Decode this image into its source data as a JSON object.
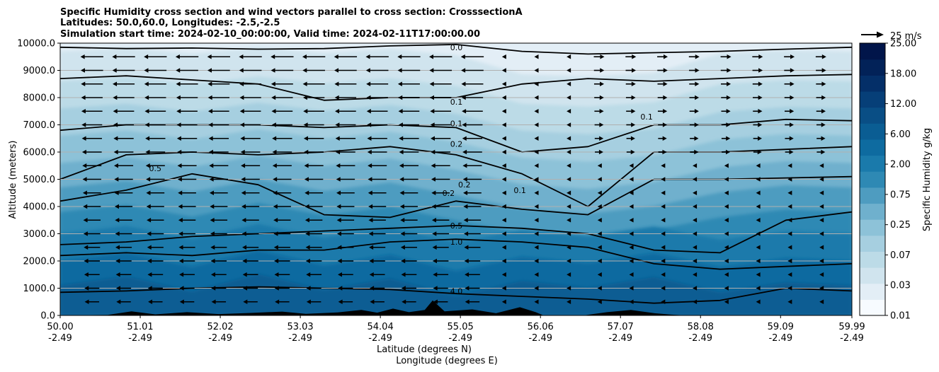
{
  "title_lines": [
    "Specific Humidity cross section and wind vectors parallel to cross section: CrosssectionA",
    "Latitudes: 50.0,60.0, Longitudes: -2.5,-2.5",
    "Simulation start time: 2024-02-10_00:00:00, Valid time: 2024-02-11T17:00:00.00"
  ],
  "quiver_key_label": "25 m/s",
  "colors": {
    "terrain": "#000000",
    "grid": "#b0b0b0",
    "contour": "#000000"
  },
  "chart_data": {
    "type": "heatmap",
    "ylabel": "Altitude (meters)",
    "xlabel_lines": [
      "Latitude (degrees N)",
      "Longitude (degrees E)"
    ],
    "ylim": [
      0,
      10000
    ],
    "xlim": [
      50.0,
      59.99
    ],
    "grid": "horizontal",
    "yticks": [
      0,
      1000,
      2000,
      3000,
      4000,
      5000,
      6000,
      7000,
      8000,
      9000,
      10000
    ],
    "ytick_labels": [
      "0.0",
      "1000.0",
      "2000.0",
      "3000.0",
      "4000.0",
      "5000.0",
      "6000.0",
      "7000.0",
      "8000.0",
      "9000.0",
      "10000.0"
    ],
    "xticks": [
      {
        "lat": "50.00",
        "lon": "-2.49"
      },
      {
        "lat": "51.01",
        "lon": "-2.49"
      },
      {
        "lat": "52.02",
        "lon": "-2.49"
      },
      {
        "lat": "53.03",
        "lon": "-2.49"
      },
      {
        "lat": "54.04",
        "lon": "-2.49"
      },
      {
        "lat": "55.05",
        "lon": "-2.49"
      },
      {
        "lat": "56.06",
        "lon": "-2.49"
      },
      {
        "lat": "57.07",
        "lon": "-2.49"
      },
      {
        "lat": "58.08",
        "lon": "-2.49"
      },
      {
        "lat": "59.09",
        "lon": "-2.49"
      },
      {
        "lat": "59.99",
        "lon": "-2.49"
      }
    ],
    "colorbar": {
      "label": "Specific Humidity g/kg",
      "levels": [
        0.01,
        0.03,
        0.07,
        0.25,
        0.75,
        2.0,
        6.0,
        12.0,
        18.0,
        25.0
      ],
      "level_labels": [
        "0.01",
        "0.03",
        "0.07",
        "0.25",
        "0.75",
        "2.00",
        "6.00",
        "12.00",
        "18.00",
        "25.00"
      ],
      "colors": [
        "#f7fbff",
        "#e3eef6",
        "#d0e4ee",
        "#bcdbe7",
        "#a6cfe0",
        "#8dc2d8",
        "#6fb0cd",
        "#4e9cc0",
        "#2e89b4",
        "#1a7aab",
        "#0e6ba0",
        "#0a5d93",
        "#094e85",
        "#063f78",
        "#042f68",
        "#022258",
        "#01154a"
      ]
    },
    "contour_labels": [
      {
        "text": "0.0",
        "lat": 55.0,
        "alt": 9850
      },
      {
        "text": "0.1",
        "lat": 55.0,
        "alt": 7850
      },
      {
        "text": "0.1",
        "lat": 55.0,
        "alt": 7050
      },
      {
        "text": "0.2",
        "lat": 55.0,
        "alt": 6300
      },
      {
        "text": "0.2",
        "lat": 54.9,
        "alt": 4500
      },
      {
        "text": "0.2",
        "lat": 55.1,
        "alt": 4800
      },
      {
        "text": "0.1",
        "lat": 55.8,
        "alt": 4600
      },
      {
        "text": "0.1",
        "lat": 57.4,
        "alt": 7300
      },
      {
        "text": "0.5",
        "lat": 51.2,
        "alt": 5400
      },
      {
        "text": "0.5",
        "lat": 55.0,
        "alt": 3300
      },
      {
        "text": "1.0",
        "lat": 55.0,
        "alt": 2700
      },
      {
        "text": "4.0",
        "lat": 55.0,
        "alt": 900
      }
    ],
    "wind_rows": [
      500,
      1000,
      1500,
      2000,
      2500,
      3000,
      3500,
      4000,
      4500,
      5000,
      5500,
      6000,
      6500,
      7000,
      7500,
      8000,
      8500,
      9000,
      9500
    ],
    "wind_columns_lat": [
      50.4,
      50.8,
      51.2,
      51.6,
      52.0,
      52.4,
      52.8,
      53.2,
      53.6,
      54.0,
      54.4,
      54.8,
      55.2,
      55.6,
      56.0,
      56.4,
      56.8,
      57.2,
      57.6,
      58.0,
      58.4,
      58.8,
      59.2,
      59.6
    ]
  }
}
